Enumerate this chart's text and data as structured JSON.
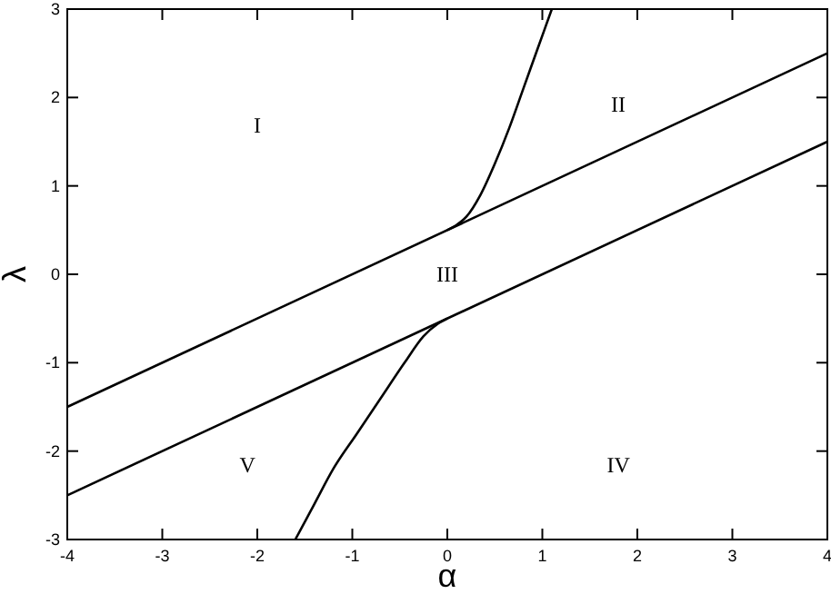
{
  "chart_data": {
    "type": "line",
    "xlabel": "α",
    "ylabel": "λ",
    "xlim": [
      -4,
      4
    ],
    "ylim": [
      -3,
      3
    ],
    "xticks": [
      -4,
      -3,
      -2,
      -1,
      0,
      1,
      2,
      3,
      4
    ],
    "yticks": [
      -3,
      -2,
      -1,
      0,
      1,
      2,
      3
    ],
    "grid": false,
    "marker": "none",
    "line_style": "solid",
    "series": [
      {
        "color": "#000000",
        "x": [
          -4,
          4
        ],
        "values": [
          -1.5,
          2.5
        ]
      },
      {
        "color": "#000000",
        "x": [
          -4,
          4
        ],
        "values": [
          -2.5,
          1.5
        ]
      },
      {
        "color": "#000000",
        "x": [
          0,
          0.1,
          0.2,
          0.35,
          0.5,
          0.65,
          0.8,
          0.95,
          1.1
        ],
        "values": [
          0.5,
          0.56,
          0.65,
          0.9,
          1.25,
          1.65,
          2.1,
          2.55,
          3
        ]
      },
      {
        "color": "#000000",
        "x": [
          -1.6,
          -1.4,
          -1.2,
          -0.95,
          -0.7,
          -0.45,
          -0.25,
          -0.1,
          0
        ],
        "values": [
          -3,
          -2.6,
          -2.2,
          -1.8,
          -1.4,
          -1,
          -0.7,
          -0.56,
          -0.5
        ]
      }
    ],
    "annotations": [
      "I",
      "II",
      "III",
      "IV",
      "V"
    ]
  }
}
